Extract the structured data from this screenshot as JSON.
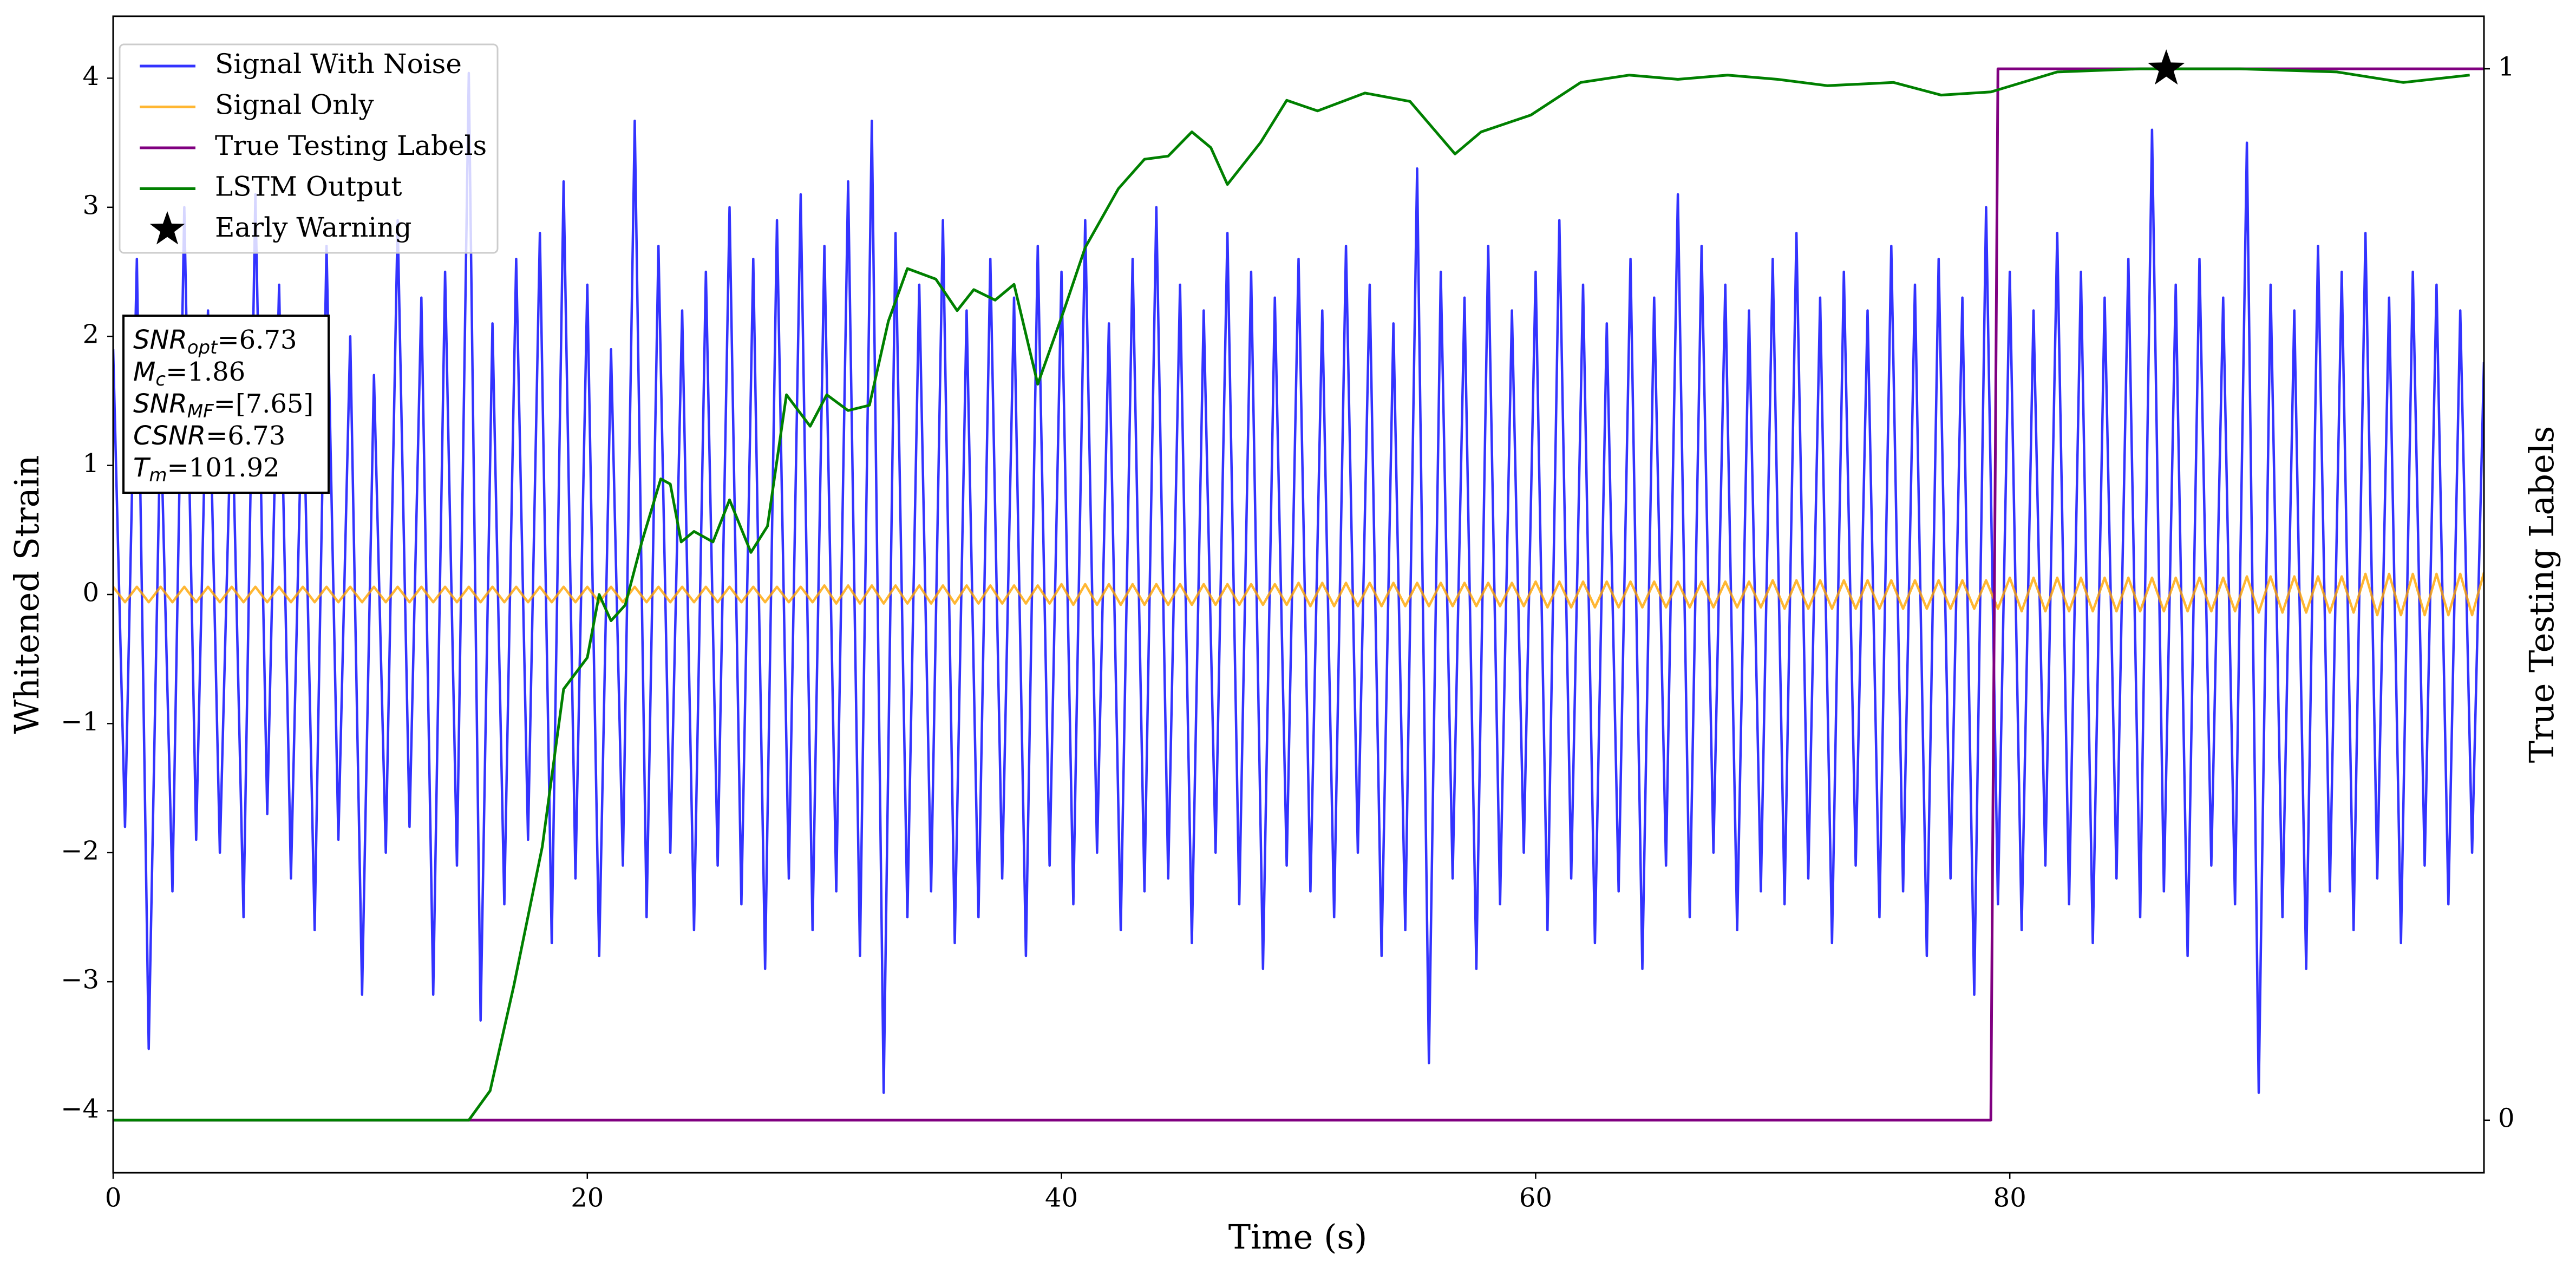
{
  "chart_data": {
    "type": "line",
    "xlabel": "Time (s)",
    "ylabel": "Whitened Strain",
    "y2label": "True Testing Labels",
    "xlim": [
      0,
      100
    ],
    "xticks": [
      0,
      20,
      40,
      60,
      80
    ],
    "ylim": [
      -4.48,
      4.48
    ],
    "yticks": [
      {
        "value": -4,
        "label": "−4"
      },
      {
        "value": -3,
        "label": "−3"
      },
      {
        "value": -2,
        "label": "−2"
      },
      {
        "value": -1,
        "label": "−1"
      },
      0,
      1,
      2,
      3,
      4
    ],
    "y2lim": [
      -0.05,
      1.05
    ],
    "y2ticks": [
      0,
      1
    ],
    "legend": "upper left",
    "x": [
      0,
      0.5,
      1,
      1.5,
      2,
      2.5,
      3,
      3.5,
      4,
      4.5,
      5,
      5.5,
      6,
      6.5,
      7,
      7.5,
      8,
      8.5,
      9,
      9.5,
      10,
      10.5,
      11,
      11.5,
      12,
      12.5,
      13,
      13.5,
      14,
      14.5,
      15,
      15.5,
      16,
      16.5,
      17,
      17.5,
      18,
      18.5,
      19,
      19.5,
      20,
      20.5,
      21,
      21.5,
      22,
      22.5,
      23,
      23.5,
      24,
      24.5,
      25,
      25.5,
      26,
      26.5,
      27,
      27.5,
      28,
      28.5,
      29,
      29.5,
      30,
      30.5,
      31,
      31.5,
      32,
      32.5,
      33,
      33.5,
      34,
      34.5,
      35,
      35.5,
      36,
      36.5,
      37,
      37.5,
      38,
      38.5,
      39,
      39.5,
      40,
      40.5,
      41,
      41.5,
      42,
      42.5,
      43,
      43.5,
      44,
      44.5,
      45,
      45.5,
      46,
      46.5,
      47,
      47.5,
      48,
      48.5,
      49,
      49.5,
      50,
      50.5,
      51,
      51.5,
      52,
      52.5,
      53,
      53.5,
      54,
      54.5,
      55,
      55.5,
      56,
      56.5,
      57,
      57.5,
      58,
      58.5,
      59,
      59.5,
      60,
      60.5,
      61,
      61.5,
      62,
      62.5,
      63,
      63.5,
      64,
      64.5,
      65,
      65.5,
      66,
      66.5,
      67,
      67.5,
      68,
      68.5,
      69,
      69.5,
      70,
      70.5,
      71,
      71.5,
      72,
      72.5,
      73,
      73.5,
      74,
      74.5,
      75,
      75.5,
      76,
      76.5,
      77,
      77.5,
      78,
      78.5,
      79,
      79.5,
      80,
      80.5,
      81,
      81.5,
      82,
      82.5,
      83,
      83.5,
      84,
      84.5,
      85,
      85.5,
      86,
      86.5,
      87,
      87.5,
      88,
      88.5,
      89,
      89.5,
      90,
      90.5,
      91,
      91.5,
      92,
      92.5,
      93,
      93.5,
      94,
      94.5,
      95,
      95.5,
      96,
      96.5,
      97,
      97.5,
      98,
      98.5,
      99,
      99.5,
      100
    ],
    "series": [
      {
        "name": "Signal With Noise",
        "color": "blue",
        "alpha": 0.8,
        "values": [
          1.9,
          -1.8,
          2.6,
          -3.52,
          1.4,
          -2.3,
          3.0,
          -1.9,
          2.2,
          -2.0,
          1.6,
          -2.5,
          3.1,
          -1.7,
          2.4,
          -2.2,
          1.8,
          -2.6,
          2.7,
          -1.9,
          2.0,
          -3.1,
          1.7,
          -2.0,
          2.9,
          -1.8,
          2.3,
          -3.1,
          2.5,
          -2.1,
          4.04,
          -3.3,
          2.1,
          -2.4,
          2.6,
          -1.9,
          2.8,
          -2.7,
          3.2,
          -2.2,
          2.4,
          -2.8,
          1.9,
          -2.1,
          3.67,
          -2.5,
          2.7,
          -2.0,
          2.2,
          -2.6,
          2.5,
          -2.1,
          3.0,
          -2.4,
          2.6,
          -2.9,
          2.9,
          -2.2,
          3.1,
          -2.6,
          2.7,
          -2.3,
          3.2,
          -2.8,
          3.67,
          -3.86,
          2.8,
          -2.5,
          2.4,
          -2.3,
          2.9,
          -2.7,
          2.2,
          -2.5,
          2.6,
          -2.2,
          2.3,
          -2.8,
          2.7,
          -2.1,
          2.5,
          -2.4,
          2.9,
          -2.0,
          2.1,
          -2.6,
          2.6,
          -2.3,
          3.0,
          -2.2,
          2.4,
          -2.7,
          2.2,
          -2.0,
          2.8,
          -2.4,
          2.5,
          -2.9,
          2.3,
          -2.1,
          2.6,
          -2.3,
          2.2,
          -2.5,
          2.7,
          -2.0,
          2.4,
          -2.8,
          2.1,
          -2.6,
          3.3,
          -3.63,
          2.5,
          -2.2,
          2.3,
          -2.9,
          2.7,
          -2.4,
          2.2,
          -2.0,
          2.5,
          -2.6,
          2.9,
          -2.2,
          2.4,
          -2.7,
          2.1,
          -2.3,
          2.6,
          -2.9,
          2.3,
          -2.1,
          3.1,
          -2.5,
          2.7,
          -2.0,
          2.4,
          -2.6,
          2.2,
          -2.3,
          2.6,
          -2.4,
          2.8,
          -2.2,
          2.3,
          -2.7,
          2.5,
          -2.1,
          2.2,
          -2.5,
          2.7,
          -2.3,
          2.4,
          -2.8,
          2.6,
          -2.2,
          2.3,
          -3.1,
          3.0,
          -2.4,
          2.5,
          -2.6,
          2.2,
          -2.1,
          2.8,
          -2.4,
          2.5,
          -2.7,
          2.3,
          -2.2,
          2.6,
          -2.5,
          3.6,
          -2.3,
          2.4,
          -2.8,
          2.6,
          -2.1,
          2.3,
          -2.4,
          3.5,
          -3.86,
          2.4,
          -2.5,
          2.2,
          -2.9,
          2.7,
          -2.3,
          2.5,
          -2.6,
          2.8,
          -2.2,
          2.3,
          -2.7,
          2.5,
          -2.1,
          2.4,
          -2.4,
          2.2,
          -2.0,
          1.8
        ]
      },
      {
        "name": "Signal Only",
        "color": "orange",
        "alpha": 0.8,
        "values": [
          0.06,
          -0.06,
          0.06,
          -0.06,
          0.06,
          -0.06,
          0.06,
          -0.06,
          0.06,
          -0.06,
          0.06,
          -0.06,
          0.06,
          -0.06,
          0.06,
          -0.06,
          0.06,
          -0.06,
          0.06,
          -0.06,
          0.06,
          -0.06,
          0.06,
          -0.06,
          0.06,
          -0.06,
          0.06,
          -0.06,
          0.06,
          -0.06,
          0.06,
          -0.06,
          0.06,
          -0.06,
          0.06,
          -0.06,
          0.06,
          -0.06,
          0.06,
          -0.06,
          0.06,
          -0.06,
          0.06,
          -0.06,
          0.06,
          -0.06,
          0.06,
          -0.06,
          0.06,
          -0.06,
          0.06,
          -0.06,
          0.06,
          -0.06,
          0.06,
          -0.06,
          0.06,
          -0.06,
          0.06,
          -0.06,
          0.07,
          -0.07,
          0.07,
          -0.07,
          0.07,
          -0.07,
          0.07,
          -0.07,
          0.07,
          -0.07,
          0.07,
          -0.07,
          0.07,
          -0.07,
          0.07,
          -0.07,
          0.07,
          -0.07,
          0.07,
          -0.07,
          0.08,
          -0.08,
          0.08,
          -0.08,
          0.08,
          -0.08,
          0.08,
          -0.08,
          0.08,
          -0.08,
          0.08,
          -0.08,
          0.08,
          -0.08,
          0.08,
          -0.08,
          0.08,
          -0.08,
          0.08,
          -0.08,
          0.09,
          -0.09,
          0.09,
          -0.09,
          0.09,
          -0.09,
          0.09,
          -0.09,
          0.09,
          -0.09,
          0.09,
          -0.09,
          0.09,
          -0.09,
          0.09,
          -0.09,
          0.09,
          -0.09,
          0.09,
          -0.09,
          0.1,
          -0.1,
          0.1,
          -0.1,
          0.1,
          -0.1,
          0.1,
          -0.1,
          0.1,
          -0.1,
          0.1,
          -0.1,
          0.1,
          -0.1,
          0.1,
          -0.1,
          0.1,
          -0.1,
          0.1,
          -0.1,
          0.11,
          -0.11,
          0.11,
          -0.11,
          0.11,
          -0.11,
          0.11,
          -0.11,
          0.11,
          -0.11,
          0.11,
          -0.11,
          0.11,
          -0.11,
          0.11,
          -0.11,
          0.11,
          -0.11,
          0.11,
          -0.11,
          0.13,
          -0.13,
          0.13,
          -0.13,
          0.13,
          -0.13,
          0.13,
          -0.13,
          0.13,
          -0.13,
          0.13,
          -0.13,
          0.13,
          -0.13,
          0.13,
          -0.13,
          0.13,
          -0.13,
          0.13,
          -0.13,
          0.14,
          -0.14,
          0.14,
          -0.14,
          0.14,
          -0.14,
          0.14,
          -0.14,
          0.14,
          -0.14,
          0.16,
          -0.16,
          0.16,
          -0.16,
          0.16,
          -0.16,
          0.16,
          -0.16,
          0.16,
          -0.16,
          0.17
        ]
      },
      {
        "name": "True Testing Labels",
        "color": "purple",
        "axis": "y2",
        "x": [
          0,
          79.2,
          79.5,
          100
        ],
        "values": [
          0,
          0,
          1,
          1
        ]
      },
      {
        "name": "LSTM Output",
        "color": "green",
        "axis": "y2",
        "x": [
          0,
          15,
          15.9,
          16.9,
          18.1,
          19,
          20,
          20.5,
          21,
          21.6,
          22.3,
          23.1,
          23.5,
          23.96,
          24.5,
          25.3,
          26,
          26.9,
          27.6,
          28.4,
          29.4,
          30.1,
          31,
          31.9,
          32.7,
          33.5,
          34.7,
          35.6,
          36.3,
          37.2,
          38,
          39,
          40.1,
          41,
          42.4,
          43.5,
          44.5,
          45.5,
          46.3,
          47,
          48.4,
          49.5,
          50.8,
          52.8,
          54.7,
          56.6,
          57.7,
          59.8,
          61.9,
          63.95,
          66,
          68.1,
          70.2,
          72.3,
          75.1,
          77.1,
          79.2,
          82,
          85.5,
          89.7,
          93.8,
          96.6,
          99.4
        ],
        "values": [
          0,
          0,
          0.028,
          0.128,
          0.26,
          0.41,
          0.44,
          0.5,
          0.475,
          0.49,
          0.55,
          0.61,
          0.605,
          0.55,
          0.56,
          0.55,
          0.59,
          0.54,
          0.565,
          0.69,
          0.66,
          0.69,
          0.675,
          0.68,
          0.76,
          0.81,
          0.8,
          0.77,
          0.79,
          0.78,
          0.795,
          0.7,
          0.77,
          0.83,
          0.886,
          0.914,
          0.917,
          0.94,
          0.925,
          0.89,
          0.93,
          0.97,
          0.96,
          0.977,
          0.969,
          0.919,
          0.94,
          0.956,
          0.987,
          0.994,
          0.99,
          0.994,
          0.99,
          0.984,
          0.987,
          0.975,
          0.978,
          0.997,
          1.0,
          1.0,
          0.997,
          0.987,
          0.994
        ]
      },
      {
        "name": "Early Warning",
        "color": "black",
        "axis": "y2",
        "marker": "star",
        "x": [
          86.6
        ],
        "values": [
          1.0
        ]
      }
    ],
    "annotations": [
      {
        "var": "SNR",
        "sub": "opt",
        "text": "=6.73"
      },
      {
        "var": "M",
        "sub": "c",
        "text": "=1.86"
      },
      {
        "var": "SNR",
        "sub": "MF",
        "text": "=[7.65]"
      },
      {
        "var": "CSNR",
        "text": "=6.73"
      },
      {
        "var": "T",
        "sub": "m",
        "text": "=101.92"
      }
    ]
  }
}
